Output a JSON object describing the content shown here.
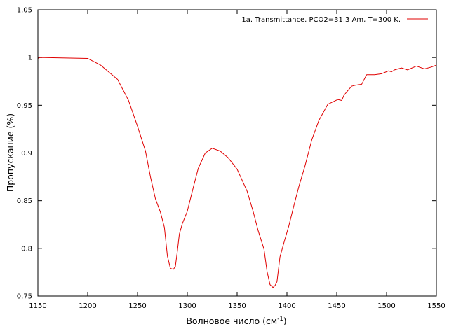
{
  "chart_data": {
    "type": "line",
    "ylabel": "Пропускание (%)",
    "xlabel": {
      "main": "Волновое число (см",
      "superscript": "-1",
      "suffix": ")"
    },
    "xlim": [
      1150,
      1550
    ],
    "ylim": [
      0.75,
      1.05
    ],
    "xticks": [
      1150,
      1200,
      1250,
      1300,
      1350,
      1400,
      1450,
      1500,
      1550
    ],
    "yticks": [
      0.75,
      0.8,
      0.85,
      0.9,
      0.95,
      1,
      1.05
    ],
    "ytick_labels": [
      "0.75",
      "0.8",
      "0.85",
      "0.9",
      "0.95",
      "1",
      "1.05"
    ],
    "grid": false,
    "legend_position": "top-right",
    "series": [
      {
        "name": "1a. Transmittance. PCO2=31.3 Am, T=300 K.",
        "color": "#e00000",
        "x": [
          1150,
          1152,
          1200,
          1213,
          1230,
          1241,
          1250,
          1258,
          1263,
          1268,
          1273,
          1277,
          1280,
          1283,
          1286,
          1288,
          1290,
          1292,
          1295,
          1300,
          1306,
          1311,
          1318,
          1325,
          1333,
          1341,
          1350,
          1360,
          1366,
          1371,
          1377,
          1380,
          1383,
          1386,
          1388,
          1390,
          1393,
          1397,
          1402,
          1407,
          1412,
          1418,
          1425,
          1432,
          1441,
          1451,
          1455,
          1457,
          1460,
          1465,
          1469,
          1475,
          1480,
          1488,
          1495,
          1502,
          1505,
          1508,
          1515,
          1521,
          1530,
          1538,
          1545,
          1550
        ],
        "y": [
          0.999,
          1.0,
          0.999,
          0.992,
          0.977,
          0.955,
          0.928,
          0.902,
          0.875,
          0.852,
          0.838,
          0.822,
          0.792,
          0.779,
          0.778,
          0.781,
          0.797,
          0.815,
          0.826,
          0.839,
          0.864,
          0.884,
          0.9,
          0.905,
          0.902,
          0.895,
          0.883,
          0.86,
          0.839,
          0.819,
          0.799,
          0.776,
          0.762,
          0.759,
          0.761,
          0.765,
          0.791,
          0.806,
          0.824,
          0.845,
          0.865,
          0.886,
          0.914,
          0.934,
          0.951,
          0.956,
          0.955,
          0.96,
          0.964,
          0.97,
          0.971,
          0.972,
          0.982,
          0.982,
          0.983,
          0.986,
          0.985,
          0.987,
          0.989,
          0.987,
          0.991,
          0.988,
          0.99,
          0.992
        ]
      }
    ]
  }
}
